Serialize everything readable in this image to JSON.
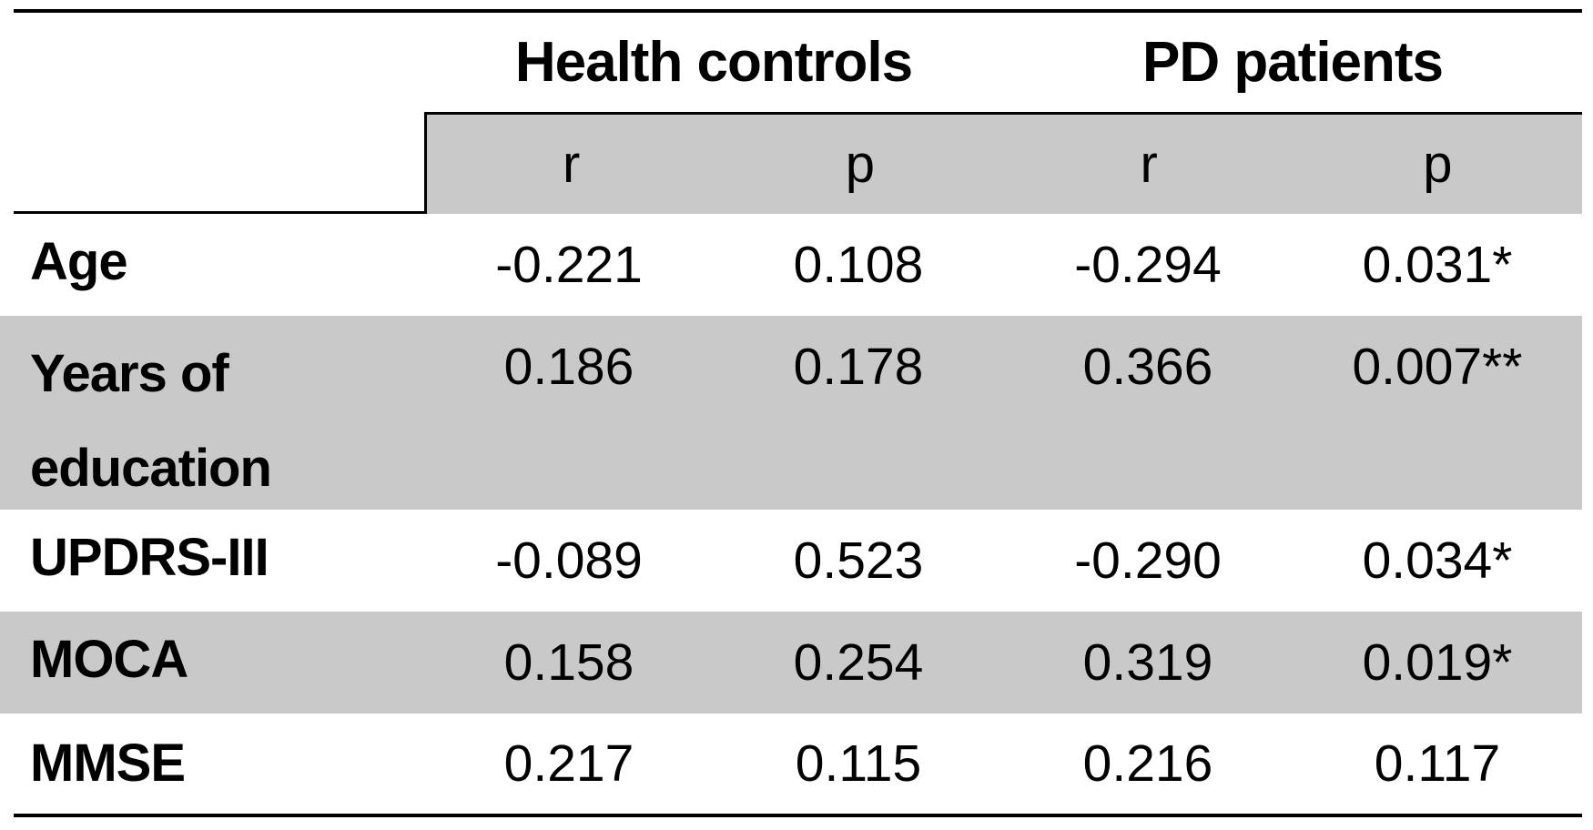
{
  "table": {
    "column_groups": [
      {
        "label": "Health controls"
      },
      {
        "label": "PD patients"
      }
    ],
    "sub_headers": [
      "r",
      "p",
      "r",
      "p"
    ],
    "rows": [
      {
        "label": "Age",
        "values": [
          "-0.221",
          "0.108",
          "-0.294",
          "0.031*"
        ]
      },
      {
        "label": "Years of education",
        "values": [
          "0.186",
          "0.178",
          "0.366",
          "0.007**"
        ]
      },
      {
        "label": "UPDRS-III",
        "values": [
          "-0.089",
          "0.523",
          "-0.290",
          "0.034*"
        ]
      },
      {
        "label": "MOCA",
        "values": [
          "0.158",
          "0.254",
          "0.319",
          "0.019*"
        ]
      },
      {
        "label": "MMSE",
        "values": [
          "0.217",
          "0.115",
          "0.216",
          "0.117"
        ]
      }
    ],
    "colors": {
      "shaded_row_bg": "#c9c9c9",
      "rule_color": "#000000",
      "text_color": "#000000",
      "background": "#ffffff"
    }
  }
}
